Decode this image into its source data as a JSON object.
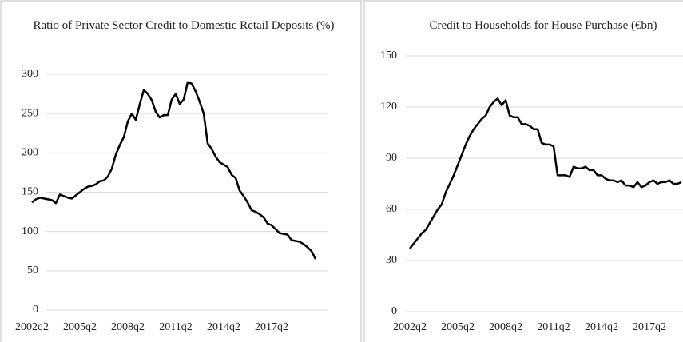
{
  "chart_data": [
    {
      "type": "line",
      "title": "Ratio of Private Sector Credit to Domestic Retail Deposits (%)",
      "categories": [
        "2002q2",
        null,
        null,
        null,
        null,
        null,
        null,
        null,
        null,
        null,
        null,
        null,
        "2005q2",
        null,
        null,
        null,
        null,
        null,
        null,
        null,
        null,
        null,
        null,
        null,
        "2008q2",
        null,
        null,
        null,
        null,
        null,
        null,
        null,
        null,
        null,
        null,
        null,
        "2011q2",
        null,
        null,
        null,
        null,
        null,
        null,
        null,
        null,
        null,
        null,
        null,
        "2014q2",
        null,
        null,
        null,
        null,
        null,
        null,
        null,
        null,
        null,
        null,
        null,
        "2017q2",
        null,
        null,
        null,
        null,
        null,
        null,
        null,
        null,
        null,
        null,
        null
      ],
      "values": [
        137,
        141,
        143,
        142,
        141,
        140,
        136,
        147,
        145,
        143,
        142,
        146,
        150,
        154,
        157,
        158,
        160,
        164,
        165,
        170,
        180,
        198,
        210,
        220,
        240,
        250,
        242,
        262,
        280,
        275,
        267,
        252,
        245,
        248,
        248,
        268,
        275,
        262,
        268,
        290,
        288,
        278,
        265,
        250,
        212,
        205,
        195,
        188,
        185,
        182,
        172,
        168,
        152,
        145,
        137,
        127,
        125,
        122,
        118,
        110,
        108,
        103,
        98,
        97,
        96,
        89,
        88,
        87,
        84,
        80,
        75,
        65
      ],
      "color": "#000000",
      "ylim": [
        0,
        300
      ],
      "yticks": [
        0,
        50,
        100,
        150,
        200,
        250,
        300
      ],
      "grid": true
    },
    {
      "type": "line",
      "title": "Credit to Households for House Purchase (€bn)",
      "categories": [
        "2002q2",
        null,
        null,
        null,
        null,
        null,
        null,
        null,
        null,
        null,
        null,
        null,
        "2005q2",
        null,
        null,
        null,
        null,
        null,
        null,
        null,
        null,
        null,
        null,
        null,
        "2008q2",
        null,
        null,
        null,
        null,
        null,
        null,
        null,
        null,
        null,
        null,
        null,
        "2011q2",
        null,
        null,
        null,
        null,
        null,
        null,
        null,
        null,
        null,
        null,
        null,
        "2014q2",
        null,
        null,
        null,
        null,
        null,
        null,
        null,
        null,
        null,
        null,
        null,
        "2017q2",
        null,
        null,
        null,
        null,
        null,
        null,
        null,
        null
      ],
      "values": [
        37,
        40,
        43,
        46,
        48,
        52,
        56,
        60,
        63,
        70,
        75,
        80,
        86,
        92,
        98,
        103,
        107,
        110,
        113,
        115,
        120,
        123,
        125,
        121,
        124,
        115,
        114,
        114,
        110,
        110,
        109,
        107,
        107,
        99,
        98,
        98,
        97,
        80,
        80,
        80,
        79,
        85,
        84,
        84,
        85,
        83,
        83,
        80,
        80,
        78,
        77,
        77,
        76,
        77,
        74,
        74,
        73,
        76,
        73,
        74,
        76,
        77,
        75,
        76,
        76,
        77,
        75,
        75,
        76
      ],
      "color": "#000000",
      "ylim": [
        0,
        150
      ],
      "yticks": [
        0,
        30,
        60,
        90,
        120,
        150
      ],
      "grid": true
    }
  ]
}
